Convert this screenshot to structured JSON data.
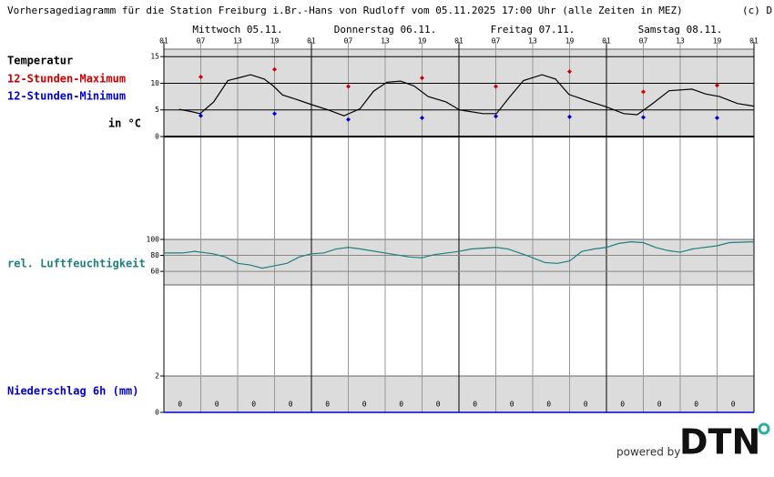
{
  "title": "Vorhersagediagramm für die Station Freiburg i.Br.-Hans von Rudloff vom 05.11.2025 17:00 Uhr (alle Zeiten in MEZ)",
  "copyright": "(c) D",
  "footer": {
    "powered_by": "powered by",
    "logo": "DTN"
  },
  "chart_data": [
    {
      "type": "line",
      "unit_label": "in °C",
      "xlim": [
        0,
        96
      ],
      "xticks": [
        {
          "value": 0,
          "label": "01"
        },
        {
          "value": 6,
          "label": "07"
        },
        {
          "value": 12,
          "label": "13"
        },
        {
          "value": 18,
          "label": "19"
        },
        {
          "value": 24,
          "label": "01"
        },
        {
          "value": 30,
          "label": "07"
        },
        {
          "value": 36,
          "label": "13"
        },
        {
          "value": 42,
          "label": "19"
        },
        {
          "value": 48,
          "label": "01"
        },
        {
          "value": 54,
          "label": "07"
        },
        {
          "value": 60,
          "label": "13"
        },
        {
          "value": 66,
          "label": "19"
        },
        {
          "value": 72,
          "label": "01"
        },
        {
          "value": 78,
          "label": "07"
        },
        {
          "value": 84,
          "label": "13"
        },
        {
          "value": 90,
          "label": "19"
        },
        {
          "value": 96,
          "label": "01"
        }
      ],
      "day_labels": [
        "Mittwoch 05.11.",
        "Donnerstag 06.11.",
        "Freitag 07.11.",
        "Samstag 08.11."
      ],
      "ylim": [
        0,
        16.4
      ],
      "yticks": [
        0,
        5,
        10,
        15
      ],
      "series": [
        {
          "name": "Temperatur",
          "color": "#000000",
          "mode": "line",
          "x": [
            2.5,
            4.4,
            5.9,
            8.1,
            10.4,
            12.1,
            14.1,
            16.3,
            17.8,
            19.3,
            21.5,
            24,
            26.7,
            29.3,
            31.9,
            34.1,
            36.3,
            38.5,
            40.7,
            43,
            45.9,
            48.1,
            51.9,
            54.1,
            56.3,
            58.5,
            61.5,
            63.7,
            65.9,
            68.9,
            71.9,
            74.8,
            77,
            79.3,
            82.2,
            85.9,
            88.1,
            90.4,
            93.3,
            96
          ],
          "values": [
            5.1,
            4.7,
            4.3,
            6.5,
            10.5,
            11,
            11.6,
            10.8,
            9.5,
            7.8,
            7,
            6,
            5,
            3.9,
            5.2,
            8.5,
            10.2,
            10.4,
            9.5,
            7.5,
            6.5,
            5,
            4.3,
            4.3,
            7.5,
            10.5,
            11.6,
            10.8,
            7.9,
            6.7,
            5.6,
            4.3,
            4.1,
            6,
            8.6,
            8.9,
            8,
            7.5,
            6.2,
            5.7
          ]
        },
        {
          "name": "12-Stunden-Maximum",
          "color": "#cc0000",
          "mode": "markers",
          "x": [
            6,
            18,
            30,
            42,
            54,
            66,
            78,
            90
          ],
          "values": [
            11.2,
            12.6,
            9.4,
            11,
            9.4,
            12.2,
            8.4,
            9.6
          ]
        },
        {
          "name": "12-Stunden-Minimum",
          "color": "#0000cc",
          "mode": "markers",
          "x": [
            6,
            18,
            30,
            42,
            54,
            66,
            78,
            90
          ],
          "values": [
            3.9,
            4.3,
            3.2,
            3.5,
            3.8,
            3.7,
            3.6,
            3.5
          ]
        }
      ]
    },
    {
      "type": "line",
      "xlim": [
        0,
        96
      ],
      "ylim": [
        43,
        100
      ],
      "yticks": [
        60,
        80,
        100
      ],
      "series": [
        {
          "name": "rel. Luftfeuchtigkeit",
          "color": "#1f7f7f",
          "mode": "line",
          "x": [
            0,
            3,
            5,
            8,
            10,
            12,
            14,
            16,
            18,
            20,
            22,
            24,
            26,
            28,
            30,
            32,
            36,
            40,
            42,
            44,
            46,
            48,
            50,
            54,
            56,
            59,
            62,
            64,
            66,
            68,
            70,
            72,
            74,
            76,
            78,
            80,
            82,
            84,
            86,
            90,
            92,
            96
          ],
          "values": [
            83,
            83,
            85,
            82,
            78,
            70,
            68,
            64,
            67,
            70,
            78,
            82,
            83,
            88,
            90,
            88,
            83,
            78,
            77,
            81,
            83,
            85,
            88,
            90,
            88,
            80,
            71,
            70,
            73,
            85,
            88,
            90,
            95,
            97,
            96,
            90,
            86,
            84,
            88,
            92,
            96,
            97
          ]
        }
      ]
    },
    {
      "type": "bar",
      "xlim": [
        0,
        96
      ],
      "ylim": [
        0,
        2
      ],
      "yticks": [
        0,
        2
      ],
      "series": [
        {
          "name": "Niederschlag 6h (mm)",
          "color": "#0000cc",
          "x": [
            3,
            9,
            15,
            21,
            27,
            33,
            39,
            45,
            51,
            57,
            63,
            69,
            75,
            81,
            87,
            93
          ],
          "values": [
            0,
            0,
            0,
            0,
            0,
            0,
            0,
            0,
            0,
            0,
            0,
            0,
            0,
            0,
            0,
            0
          ]
        }
      ]
    }
  ]
}
